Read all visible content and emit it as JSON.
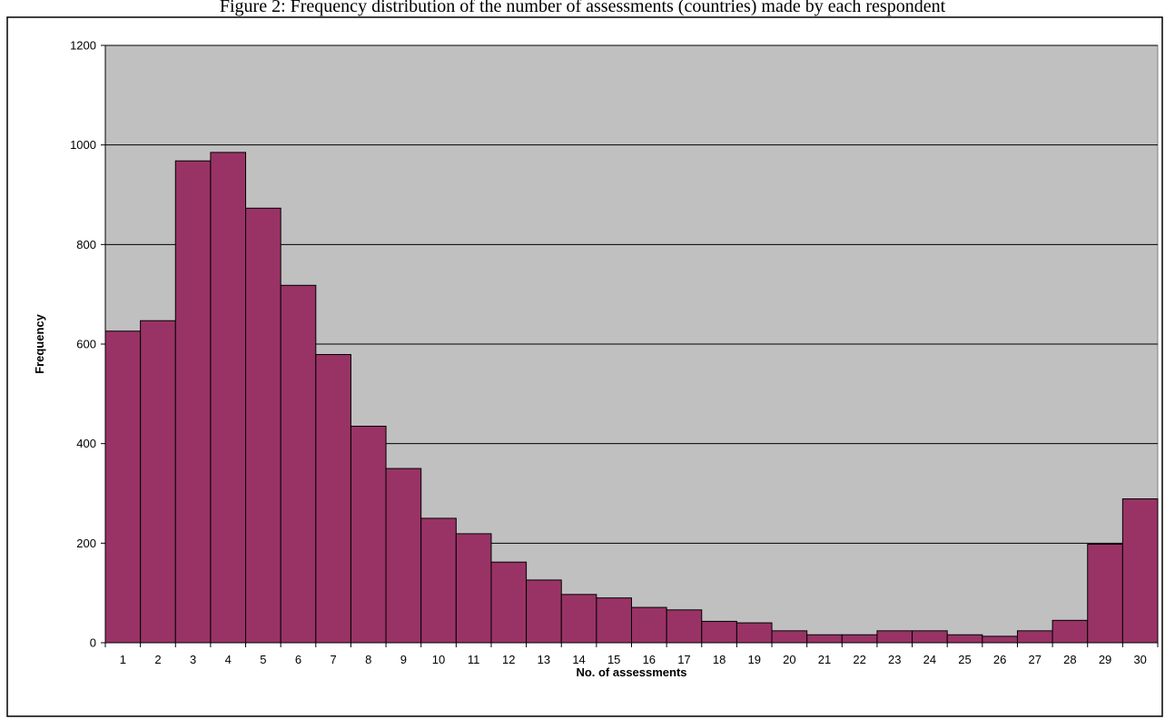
{
  "caption": "Figure 2: Frequency distribution of the number of assessments (countries) made by each respondent",
  "colors": {
    "bar_fill": "#993366",
    "bar_stroke": "#000000",
    "plot_background": "#c0c0c0",
    "gridline": "#000000",
    "frame_border": "#000000"
  },
  "chart_data": {
    "type": "bar",
    "title": "",
    "xlabel": "No. of assessments",
    "ylabel": "Frequency",
    "ylim": [
      0,
      1200
    ],
    "y_ticks": [
      0,
      200,
      400,
      600,
      800,
      1000,
      1200
    ],
    "grid": "horizontal",
    "legend": "none",
    "categories": [
      "1",
      "2",
      "3",
      "4",
      "5",
      "6",
      "7",
      "8",
      "9",
      "10",
      "11",
      "12",
      "13",
      "14",
      "15",
      "16",
      "17",
      "18",
      "19",
      "20",
      "21",
      "22",
      "23",
      "24",
      "25",
      "26",
      "27",
      "28",
      "29",
      "30"
    ],
    "values": [
      626,
      647,
      968,
      985,
      873,
      718,
      579,
      435,
      350,
      250,
      219,
      162,
      126,
      97,
      90,
      71,
      66,
      43,
      40,
      24,
      16,
      16,
      24,
      24,
      16,
      13,
      24,
      45,
      198,
      289
    ]
  }
}
